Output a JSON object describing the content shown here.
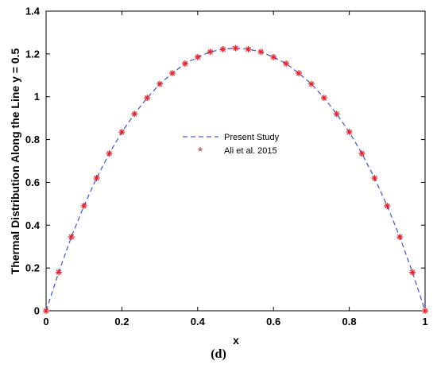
{
  "caption": "(d)",
  "colors": {
    "line": "#4a5ed8",
    "marker": "#e8202a",
    "axis": "#000000"
  },
  "chart_data": {
    "type": "line",
    "xlabel": "x",
    "ylabel": "Thermal Distribution Along the Line y = 0.5",
    "xlim": [
      0,
      1
    ],
    "ylim": [
      0,
      1.4
    ],
    "xticks": [
      "0",
      "0.2",
      "0.4",
      "0.6",
      "0.8",
      "1"
    ],
    "xtick_values": [
      0,
      0.2,
      0.4,
      0.6,
      0.8,
      1.0
    ],
    "yticks": [
      "0",
      "0.2",
      "0.4",
      "0.6",
      "0.8",
      "1",
      "1.2",
      "1.4"
    ],
    "ytick_values": [
      0,
      0.2,
      0.4,
      0.6,
      0.8,
      1.0,
      1.2,
      1.4
    ],
    "grid": false,
    "legend_position": "center",
    "series": [
      {
        "name": "Present Study",
        "style": "dashed-line",
        "x": [
          0,
          0.0333,
          0.0667,
          0.1,
          0.1333,
          0.1667,
          0.2,
          0.2333,
          0.2667,
          0.3,
          0.3333,
          0.3667,
          0.4,
          0.4333,
          0.4667,
          0.5,
          0.5333,
          0.5667,
          0.6,
          0.6333,
          0.6667,
          0.7,
          0.7333,
          0.7667,
          0.8,
          0.8333,
          0.8667,
          0.9,
          0.9333,
          0.9667,
          1.0
        ],
        "y": [
          0,
          0.18,
          0.345,
          0.49,
          0.62,
          0.735,
          0.835,
          0.92,
          0.995,
          1.06,
          1.11,
          1.155,
          1.185,
          1.21,
          1.222,
          1.227,
          1.222,
          1.21,
          1.185,
          1.155,
          1.11,
          1.06,
          0.995,
          0.92,
          0.835,
          0.735,
          0.62,
          0.49,
          0.345,
          0.18,
          0
        ]
      },
      {
        "name": "Ali et al. 2015",
        "style": "asterisk-markers",
        "x": [
          0,
          0.0333,
          0.0667,
          0.1,
          0.1333,
          0.1667,
          0.2,
          0.2333,
          0.2667,
          0.3,
          0.3333,
          0.3667,
          0.4,
          0.4333,
          0.4667,
          0.5,
          0.5333,
          0.5667,
          0.6,
          0.6333,
          0.6667,
          0.7,
          0.7333,
          0.7667,
          0.8,
          0.8333,
          0.8667,
          0.9,
          0.9333,
          0.9667,
          1.0
        ],
        "y": [
          0,
          0.18,
          0.345,
          0.49,
          0.62,
          0.735,
          0.835,
          0.92,
          0.995,
          1.06,
          1.11,
          1.155,
          1.185,
          1.21,
          1.222,
          1.227,
          1.222,
          1.21,
          1.185,
          1.155,
          1.11,
          1.06,
          0.995,
          0.92,
          0.835,
          0.735,
          0.62,
          0.49,
          0.345,
          0.18,
          0
        ]
      }
    ]
  }
}
